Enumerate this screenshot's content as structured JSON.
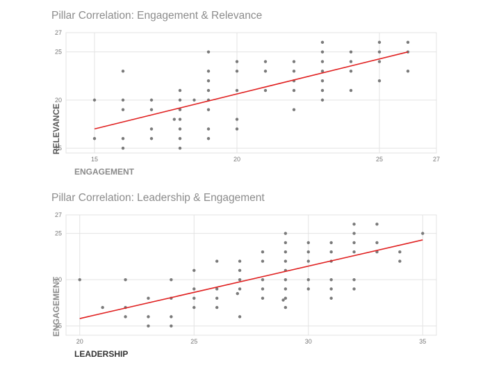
{
  "chart_data": [
    {
      "type": "scatter",
      "title": "Pillar Correlation: Engagement & Relevance",
      "xlabel": "ENGAGEMENT",
      "ylabel": "RELEVANCE",
      "xlim": [
        14,
        27
      ],
      "ylim": [
        14.5,
        27
      ],
      "xticks": [
        15,
        20,
        25,
        27
      ],
      "yticks": [
        15,
        20,
        25,
        27
      ],
      "grid": true,
      "trendline": {
        "x": [
          15,
          26
        ],
        "y": [
          17.0,
          25.0
        ],
        "color": "#e02020"
      },
      "point_color": "#7a7a7a",
      "points": [
        [
          15,
          20
        ],
        [
          15,
          16
        ],
        [
          16,
          23
        ],
        [
          16,
          20
        ],
        [
          16,
          19
        ],
        [
          16,
          16
        ],
        [
          16,
          15
        ],
        [
          17,
          20
        ],
        [
          17,
          19
        ],
        [
          17,
          17
        ],
        [
          17,
          16
        ],
        [
          17.8,
          18
        ],
        [
          18,
          21
        ],
        [
          18,
          20
        ],
        [
          18,
          19
        ],
        [
          18,
          18
        ],
        [
          18,
          17
        ],
        [
          18,
          16
        ],
        [
          18,
          15
        ],
        [
          18.5,
          20
        ],
        [
          19,
          25
        ],
        [
          19,
          23
        ],
        [
          19,
          22
        ],
        [
          19,
          21
        ],
        [
          19,
          20
        ],
        [
          19,
          19
        ],
        [
          19,
          17
        ],
        [
          19,
          16
        ],
        [
          20,
          24
        ],
        [
          20,
          23
        ],
        [
          20,
          21
        ],
        [
          20,
          18
        ],
        [
          20,
          17
        ],
        [
          21,
          24
        ],
        [
          21,
          23
        ],
        [
          21,
          21
        ],
        [
          22,
          24
        ],
        [
          22,
          23
        ],
        [
          22,
          22
        ],
        [
          22,
          21
        ],
        [
          22,
          19
        ],
        [
          23,
          26
        ],
        [
          23,
          25
        ],
        [
          23,
          24
        ],
        [
          23,
          23
        ],
        [
          23,
          22
        ],
        [
          23,
          21
        ],
        [
          23,
          20
        ],
        [
          24,
          25
        ],
        [
          24,
          24
        ],
        [
          24,
          23
        ],
        [
          24,
          21
        ],
        [
          25,
          26
        ],
        [
          25,
          25
        ],
        [
          25,
          24
        ],
        [
          25,
          22
        ],
        [
          26,
          26
        ],
        [
          26,
          25
        ],
        [
          26,
          23
        ]
      ]
    },
    {
      "type": "scatter",
      "title": "Pillar Correlation: Leadership & Engagement",
      "xlabel": "LEADERSHIP",
      "ylabel": "ENGAGEMENT",
      "xlim": [
        19.4,
        35.6
      ],
      "ylim": [
        14,
        27
      ],
      "xticks": [
        20,
        25,
        30,
        35
      ],
      "yticks": [
        15,
        20,
        25,
        27
      ],
      "grid": true,
      "trendline": {
        "x": [
          20,
          35
        ],
        "y": [
          15.8,
          24.3
        ],
        "color": "#e02020"
      },
      "point_color": "#7a7a7a",
      "points": [
        [
          20,
          20
        ],
        [
          21,
          17
        ],
        [
          22,
          20
        ],
        [
          22,
          17
        ],
        [
          22,
          16
        ],
        [
          23,
          18
        ],
        [
          23,
          16
        ],
        [
          23,
          15
        ],
        [
          24,
          20
        ],
        [
          24,
          18
        ],
        [
          24,
          16
        ],
        [
          24,
          15
        ],
        [
          25,
          21
        ],
        [
          25,
          19
        ],
        [
          25,
          18
        ],
        [
          25,
          17
        ],
        [
          26,
          22
        ],
        [
          26,
          19
        ],
        [
          26,
          18
        ],
        [
          26,
          17
        ],
        [
          27,
          22
        ],
        [
          27,
          21
        ],
        [
          27,
          20
        ],
        [
          27,
          19
        ],
        [
          26.9,
          18.5
        ],
        [
          27,
          16
        ],
        [
          28,
          23
        ],
        [
          28,
          22
        ],
        [
          28,
          20
        ],
        [
          28,
          19
        ],
        [
          28,
          18
        ],
        [
          29,
          25
        ],
        [
          29,
          24
        ],
        [
          29,
          23
        ],
        [
          29,
          22
        ],
        [
          29,
          21
        ],
        [
          29,
          20
        ],
        [
          29,
          19
        ],
        [
          29,
          18
        ],
        [
          28.9,
          17.8
        ],
        [
          29,
          17
        ],
        [
          30,
          24
        ],
        [
          30,
          23
        ],
        [
          30,
          22
        ],
        [
          30,
          20
        ],
        [
          30,
          19
        ],
        [
          31,
          24
        ],
        [
          31,
          23
        ],
        [
          31,
          22
        ],
        [
          31,
          20
        ],
        [
          31,
          19
        ],
        [
          31,
          18
        ],
        [
          32,
          26
        ],
        [
          32,
          25
        ],
        [
          32,
          24
        ],
        [
          32,
          23
        ],
        [
          32,
          20
        ],
        [
          32,
          19
        ],
        [
          33,
          26
        ],
        [
          33,
          24
        ],
        [
          33,
          23
        ],
        [
          34,
          23
        ],
        [
          34,
          22
        ],
        [
          35,
          25
        ]
      ]
    }
  ]
}
